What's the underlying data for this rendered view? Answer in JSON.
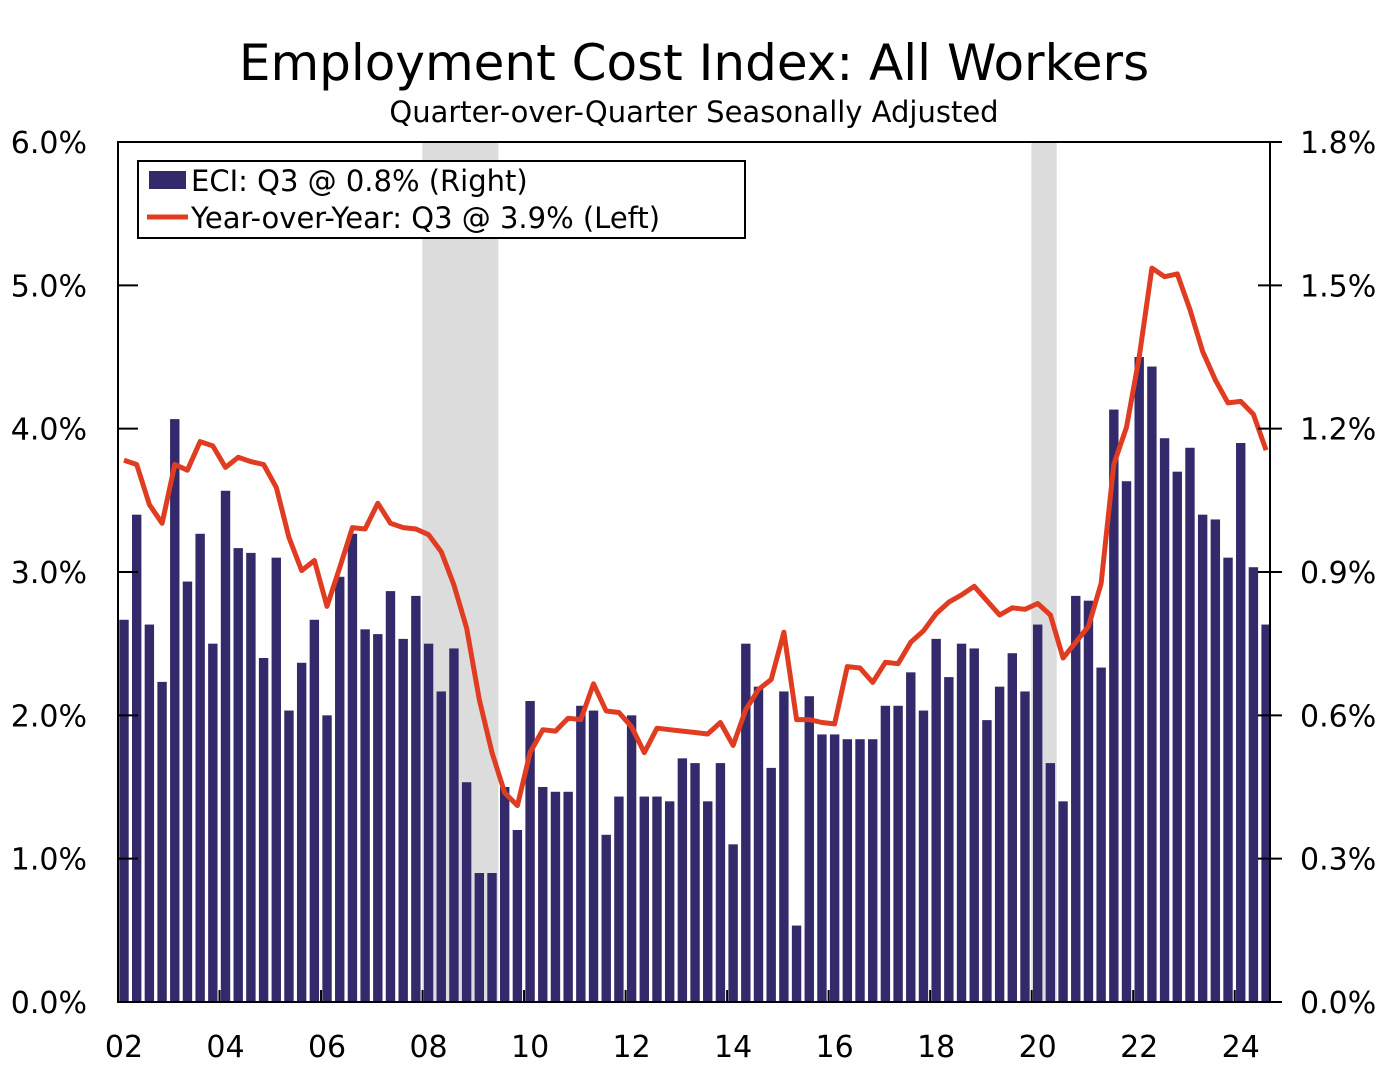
{
  "chart_data": {
    "type": "bar+line",
    "title": "Employment Cost Index: All Workers",
    "subtitle": "Quarter-over-Quarter Seasonally Adjusted",
    "x_tick_labels": [
      "02",
      "04",
      "06",
      "08",
      "10",
      "12",
      "14",
      "16",
      "18",
      "20",
      "22",
      "24"
    ],
    "y_left": {
      "range": [
        0,
        6
      ],
      "ticks": [
        "0.0%",
        "1.0%",
        "2.0%",
        "3.0%",
        "4.0%",
        "5.0%",
        "6.0%"
      ]
    },
    "y_right": {
      "range": [
        0,
        1.8
      ],
      "ticks": [
        "0.0%",
        "0.3%",
        "0.6%",
        "0.9%",
        "1.2%",
        "1.5%",
        "1.8%"
      ]
    },
    "legend_placement": "top-left",
    "grid": false,
    "start_quarter": "2002 Q1",
    "end_quarter": "2024 Q3",
    "recessions": [
      [
        "2008 Q1",
        "2009 Q2"
      ],
      [
        "2020 Q1",
        "2020 Q2"
      ]
    ],
    "recession_color": "#dcdcdc",
    "series": [
      {
        "name": "ECI: Q3 @ 0.8% (Right)",
        "type": "bar",
        "axis": "right",
        "color": "#332a6b",
        "values": [
          0.8,
          1.02,
          0.79,
          0.67,
          1.22,
          0.88,
          0.98,
          0.75,
          1.07,
          0.95,
          0.94,
          0.72,
          0.93,
          0.61,
          0.71,
          0.8,
          0.6,
          0.89,
          0.98,
          0.78,
          0.77,
          0.86,
          0.76,
          0.85,
          0.75,
          0.65,
          0.74,
          0.46,
          0.27,
          0.27,
          0.45,
          0.36,
          0.63,
          0.45,
          0.44,
          0.44,
          0.62,
          0.61,
          0.35,
          0.43,
          0.6,
          0.43,
          0.43,
          0.42,
          0.51,
          0.5,
          0.42,
          0.5,
          0.33,
          0.75,
          0.66,
          0.49,
          0.65,
          0.16,
          0.64,
          0.56,
          0.56,
          0.55,
          0.55,
          0.55,
          0.62,
          0.62,
          0.69,
          0.61,
          0.76,
          0.68,
          0.75,
          0.74,
          0.59,
          0.66,
          0.73,
          0.65,
          0.79,
          0.5,
          0.42,
          0.85,
          0.84,
          0.7,
          1.24,
          1.09,
          1.35,
          1.33,
          1.18,
          1.11,
          1.16,
          1.02,
          1.01,
          0.93,
          1.17,
          0.91,
          0.79
        ]
      },
      {
        "name": "Year-over-Year: Q3 @ 3.9% (Left)",
        "type": "line",
        "axis": "left",
        "color": "#e03c22",
        "values": [
          3.78,
          3.75,
          3.47,
          3.34,
          3.75,
          3.71,
          3.91,
          3.88,
          3.73,
          3.8,
          3.77,
          3.75,
          3.59,
          3.24,
          3.01,
          3.08,
          2.76,
          3.03,
          3.31,
          3.3,
          3.48,
          3.34,
          3.31,
          3.3,
          3.26,
          3.14,
          2.91,
          2.61,
          2.11,
          1.74,
          1.46,
          1.37,
          1.74,
          1.9,
          1.89,
          1.98,
          1.97,
          2.22,
          2.03,
          2.02,
          1.92,
          1.74,
          1.91,
          1.9,
          1.89,
          1.88,
          1.87,
          1.95,
          1.79,
          2.04,
          2.18,
          2.25,
          2.58,
          1.97,
          1.97,
          1.95,
          1.94,
          2.34,
          2.33,
          2.23,
          2.37,
          2.36,
          2.51,
          2.59,
          2.71,
          2.79,
          2.84,
          2.9,
          2.8,
          2.7,
          2.75,
          2.74,
          2.78,
          2.7,
          2.4,
          2.51,
          2.62,
          2.92,
          3.75,
          4.01,
          4.5,
          5.12,
          5.06,
          5.08,
          4.83,
          4.54,
          4.34,
          4.18,
          4.19,
          4.1,
          3.85
        ]
      }
    ]
  }
}
